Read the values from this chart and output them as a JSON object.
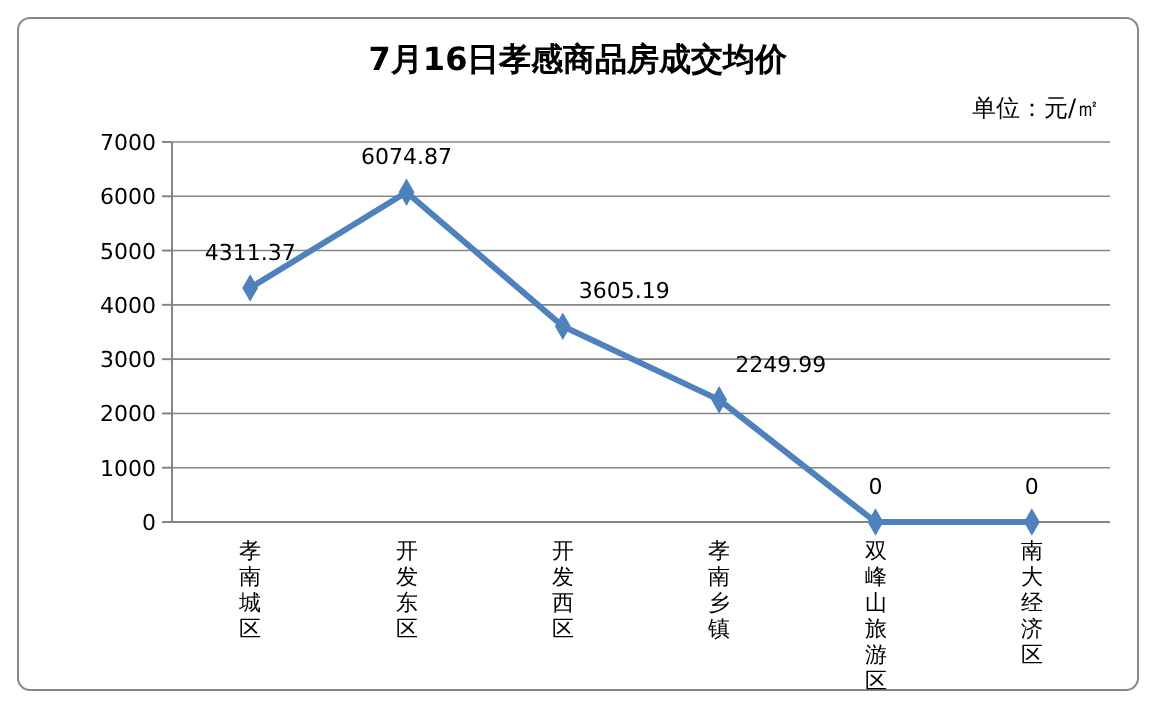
{
  "chart_data": {
    "type": "line",
    "title": "7月16日孝感商品房成交均价",
    "annotations": [
      "单位：元/㎡"
    ],
    "categories": [
      "孝南城区",
      "开发东区",
      "开发西区",
      "孝南乡镇",
      "双峰山旅游区",
      "南大经济区"
    ],
    "series": [
      {
        "color": "#4f81bd",
        "values": [
          4311.37,
          6074.87,
          3605.19,
          2249.99,
          0,
          0
        ]
      }
    ],
    "ylim": [
      0,
      7000
    ],
    "yticks": [
      0,
      1000,
      2000,
      3000,
      4000,
      5000,
      6000,
      7000
    ],
    "grid": "y",
    "marker": "diamond",
    "data_labels": true
  }
}
